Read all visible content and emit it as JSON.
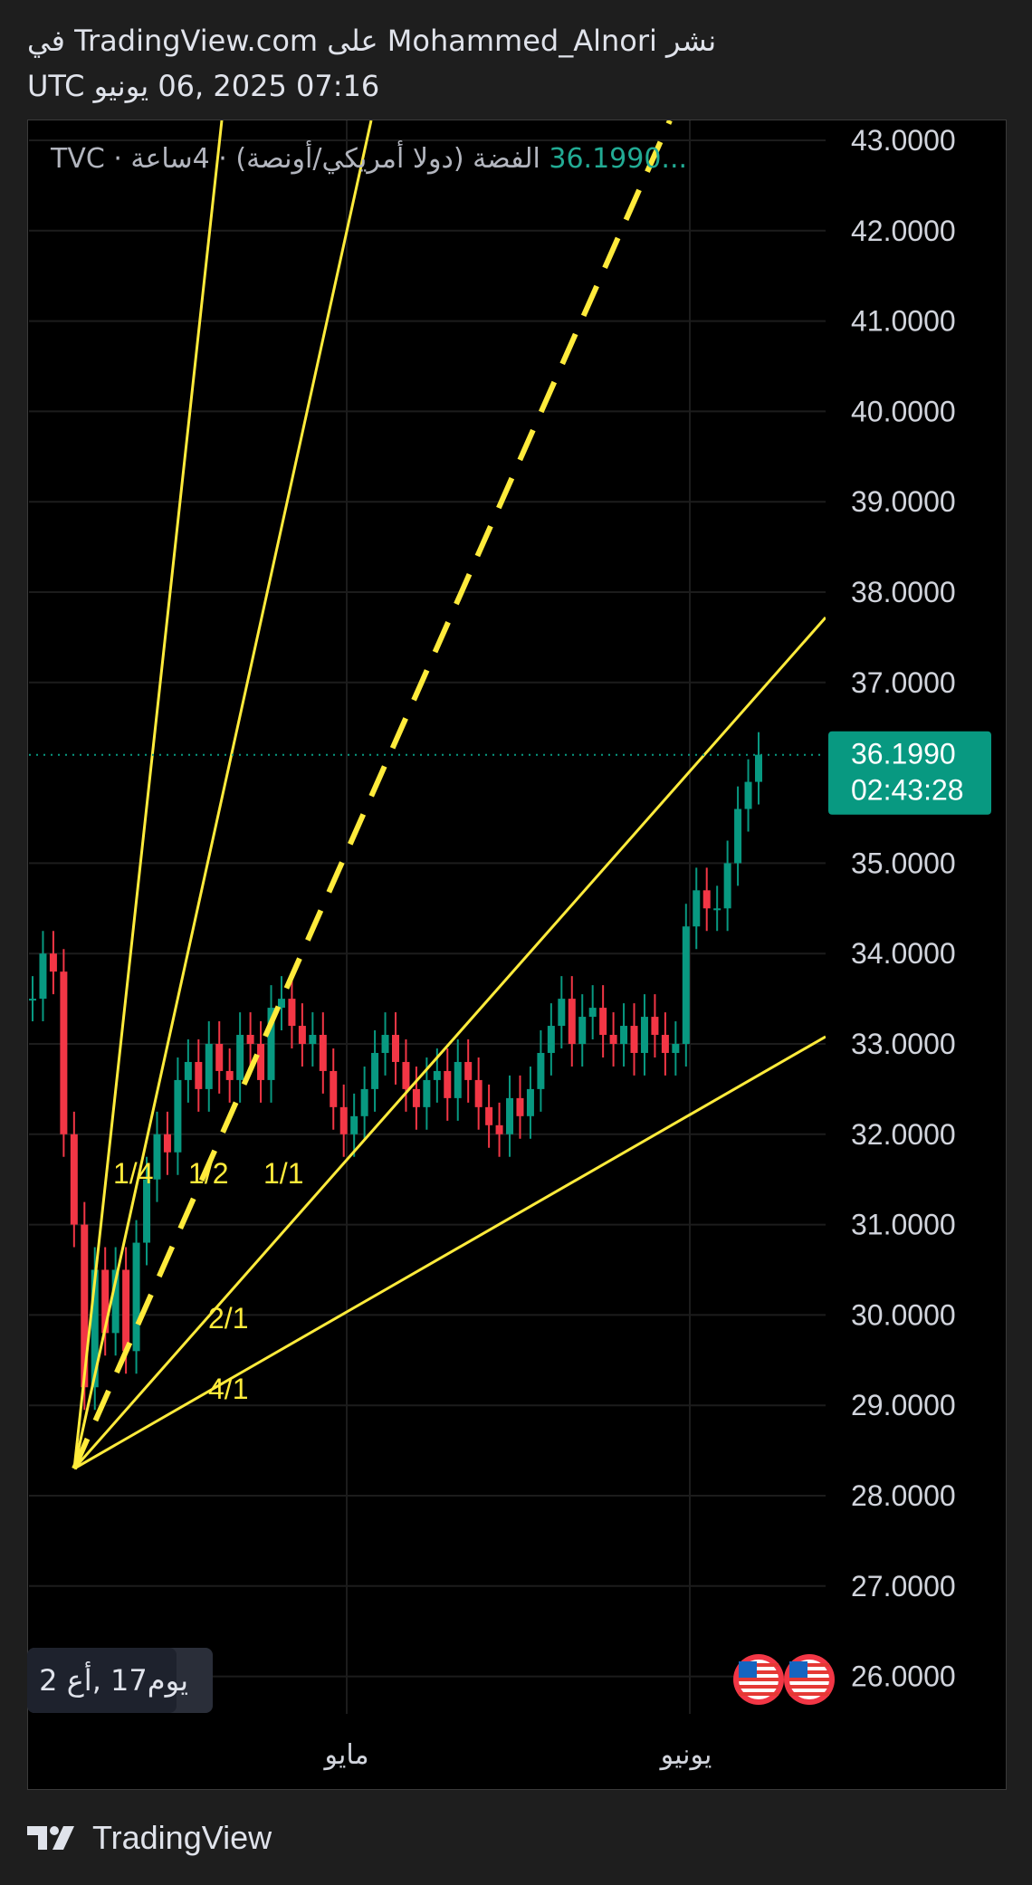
{
  "header": {
    "line1": "نشر Mohammed_Alnori على TradingView.com في",
    "line2": "07:16 2025 ,06 يونيو UTC"
  },
  "legend": {
    "symbol": "الفضة (دولا أمريكي/أونصة) · 4ساعة · TVC",
    "price": "36.1990..."
  },
  "footer": {
    "brand": "TradingView",
    "logo": "tradingview-logo"
  },
  "chart_data": {
    "type": "line",
    "y_axis": {
      "ticks": [
        "43.0000",
        "42.0000",
        "41.0000",
        "40.0000",
        "39.0000",
        "38.0000",
        "37.0000",
        "35.0000",
        "34.0000",
        "33.0000",
        "32.0000",
        "31.0000",
        "30.0000",
        "29.0000",
        "28.0000",
        "27.0000",
        "26.0000"
      ],
      "ylim": [
        25.5,
        43.2
      ]
    },
    "x_axis": {
      "labels": [
        "مايو",
        "يونيو"
      ]
    },
    "last_price": {
      "value": "36.1990",
      "countdown": "02:43:28",
      "color": "#089981"
    },
    "series": [
      {
        "values": [
          33.5,
          34.0,
          33.8,
          32.0,
          31.0,
          29.2,
          30.5,
          29.8,
          30.5,
          29.6,
          30.8,
          31.5,
          32.0,
          31.8,
          32.6,
          32.8,
          32.5,
          33.0,
          32.7,
          32.6,
          33.1,
          33.0,
          32.6,
          33.4,
          33.5,
          33.2,
          33.0,
          33.1,
          32.7,
          32.3,
          32.0,
          32.2,
          32.5,
          32.9,
          33.1,
          32.8,
          32.5,
          32.3,
          32.6,
          32.7,
          32.4,
          32.8,
          32.6,
          32.3,
          32.1,
          32.0,
          32.4,
          32.2,
          32.5,
          32.9,
          33.2,
          33.5,
          33.0,
          33.3,
          33.4,
          33.1,
          33.0,
          33.2,
          32.9,
          33.3,
          33.1,
          32.9,
          33.0,
          34.3,
          34.7,
          34.5,
          34.5,
          35.0,
          35.6,
          35.9,
          36.2
        ],
        "up_color": "#089981",
        "down_color": "#f23645"
      }
    ],
    "fan": {
      "color": "#ffeb3b",
      "origin": {
        "price": 28.3
      },
      "labels": [
        "1/1",
        "1/2",
        "1/4",
        "2/1",
        "4/1"
      ]
    },
    "bottom_badge": {
      "text": "2 يوم17 ,أع"
    },
    "events": [
      "us-flag-icon",
      "us-flag-icon"
    ]
  }
}
